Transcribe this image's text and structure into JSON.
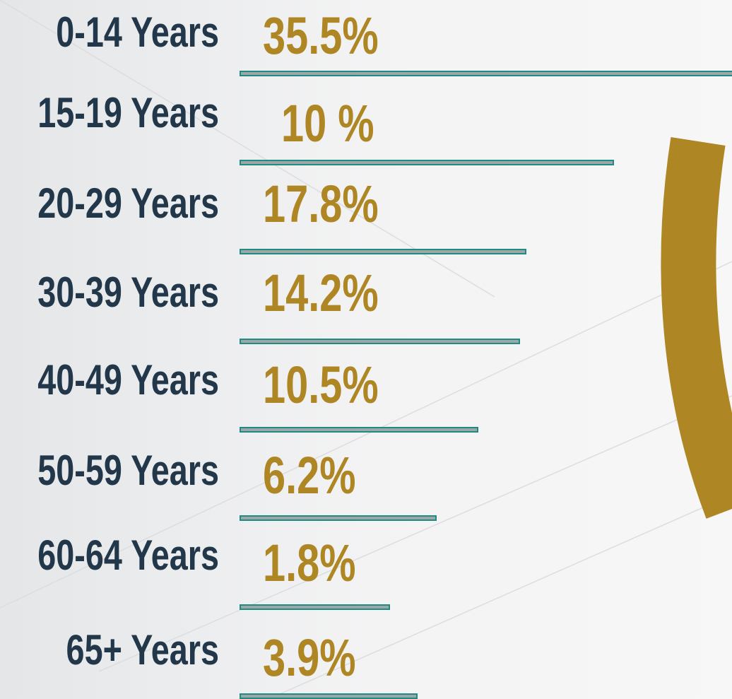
{
  "rows": [
    {
      "label": "0-14 Years",
      "value": "35.5%"
    },
    {
      "label": "15-19 Years",
      "value": "10 %"
    },
    {
      "label": "20-29 Years",
      "value": "17.8%"
    },
    {
      "label": "30-39 Years",
      "value": "14.2%"
    },
    {
      "label": "40-49 Years",
      "value": "10.5%"
    },
    {
      "label": "50-59 Years",
      "value": "6.2%"
    },
    {
      "label": "60-64 Years",
      "value": "1.8%"
    },
    {
      "label": "65+ Years",
      "value": "3.9%"
    }
  ]
}
